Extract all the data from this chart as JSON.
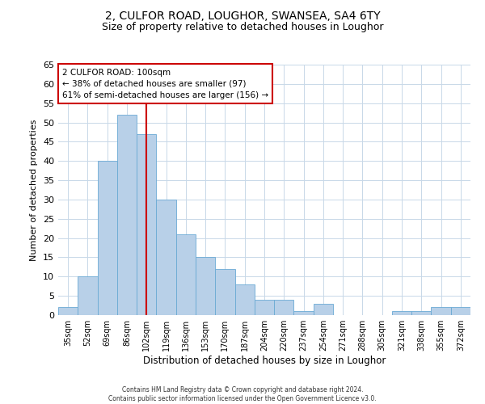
{
  "title": "2, CULFOR ROAD, LOUGHOR, SWANSEA, SA4 6TY",
  "subtitle": "Size of property relative to detached houses in Loughor",
  "xlabel": "Distribution of detached houses by size in Loughor",
  "ylabel": "Number of detached properties",
  "bin_labels": [
    "35sqm",
    "52sqm",
    "69sqm",
    "86sqm",
    "102sqm",
    "119sqm",
    "136sqm",
    "153sqm",
    "170sqm",
    "187sqm",
    "204sqm",
    "220sqm",
    "237sqm",
    "254sqm",
    "271sqm",
    "288sqm",
    "305sqm",
    "321sqm",
    "338sqm",
    "355sqm",
    "372sqm"
  ],
  "bar_values": [
    2,
    10,
    40,
    52,
    47,
    30,
    21,
    15,
    12,
    8,
    4,
    4,
    1,
    3,
    0,
    0,
    0,
    1,
    1,
    2,
    2
  ],
  "bar_color": "#b8d0e8",
  "bar_edge_color": "#6aaad4",
  "vline_x_idx": 4,
  "vline_color": "#cc0000",
  "ylim": [
    0,
    65
  ],
  "yticks": [
    0,
    5,
    10,
    15,
    20,
    25,
    30,
    35,
    40,
    45,
    50,
    55,
    60,
    65
  ],
  "annotation_title": "2 CULFOR ROAD: 100sqm",
  "annotation_line2": "← 38% of detached houses are smaller (97)",
  "annotation_line3": "61% of semi-detached houses are larger (156) →",
  "annotation_box_color": "#ffffff",
  "annotation_box_edge": "#cc0000",
  "footer_line1": "Contains HM Land Registry data © Crown copyright and database right 2024.",
  "footer_line2": "Contains public sector information licensed under the Open Government Licence v3.0.",
  "background_color": "#ffffff",
  "grid_color": "#c8d8e8",
  "title_fontsize": 10,
  "subtitle_fontsize": 9
}
